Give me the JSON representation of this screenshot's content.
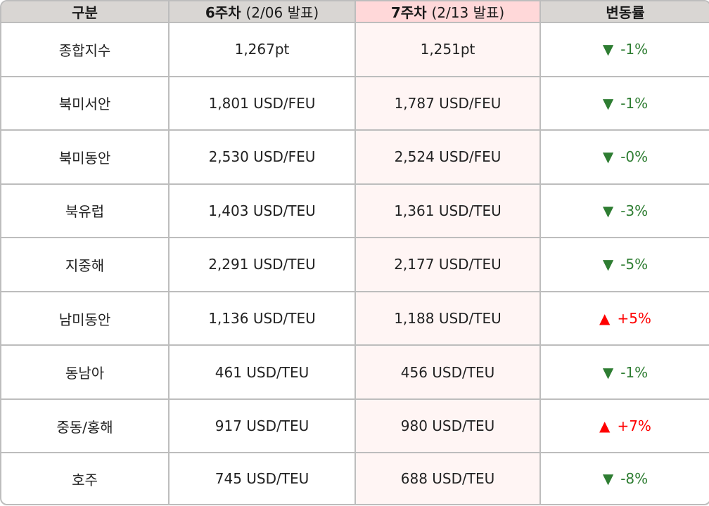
{
  "header": {
    "category": "구분",
    "week6": {
      "label": "6주차",
      "sub": "(2/06 발표)"
    },
    "week7": {
      "label": "7주차",
      "sub": "(2/13 발표)"
    },
    "change": "변동률"
  },
  "colors": {
    "up": "#ff0000",
    "down": "#2e7d32",
    "header_bg": "#d9d6d3",
    "highlight_header": "#ffd8d9",
    "highlight_cell": "#fff5f4"
  },
  "rows": [
    {
      "name": "종합지수",
      "w6": "1,267pt",
      "w7": "1,251pt",
      "dir": "down",
      "arrow": "▼",
      "change": "-1%"
    },
    {
      "name": "북미서안",
      "w6": "1,801 USD/FEU",
      "w7": "1,787 USD/FEU",
      "dir": "down",
      "arrow": "▼",
      "change": "-1%"
    },
    {
      "name": "북미동안",
      "w6": "2,530 USD/FEU",
      "w7": "2,524 USD/FEU",
      "dir": "down",
      "arrow": "▼",
      "change": "-0%"
    },
    {
      "name": "북유럽",
      "w6": "1,403 USD/TEU",
      "w7": "1,361 USD/TEU",
      "dir": "down",
      "arrow": "▼",
      "change": "-3%"
    },
    {
      "name": "지중해",
      "w6": "2,291 USD/TEU",
      "w7": "2,177 USD/TEU",
      "dir": "down",
      "arrow": "▼",
      "change": "-5%"
    },
    {
      "name": "남미동안",
      "w6": "1,136 USD/TEU",
      "w7": "1,188 USD/TEU",
      "dir": "up",
      "arrow": "▲",
      "change": "+5%"
    },
    {
      "name": "동남아",
      "w6": "461 USD/TEU",
      "w7": "456 USD/TEU",
      "dir": "down",
      "arrow": "▼",
      "change": "-1%"
    },
    {
      "name": "중동/홍해",
      "w6": "917 USD/TEU",
      "w7": "980 USD/TEU",
      "dir": "up",
      "arrow": "▲",
      "change": "+7%"
    },
    {
      "name": "호주",
      "w6": "745 USD/TEU",
      "w7": "688 USD/TEU",
      "dir": "down",
      "arrow": "▼",
      "change": "-8%"
    }
  ]
}
